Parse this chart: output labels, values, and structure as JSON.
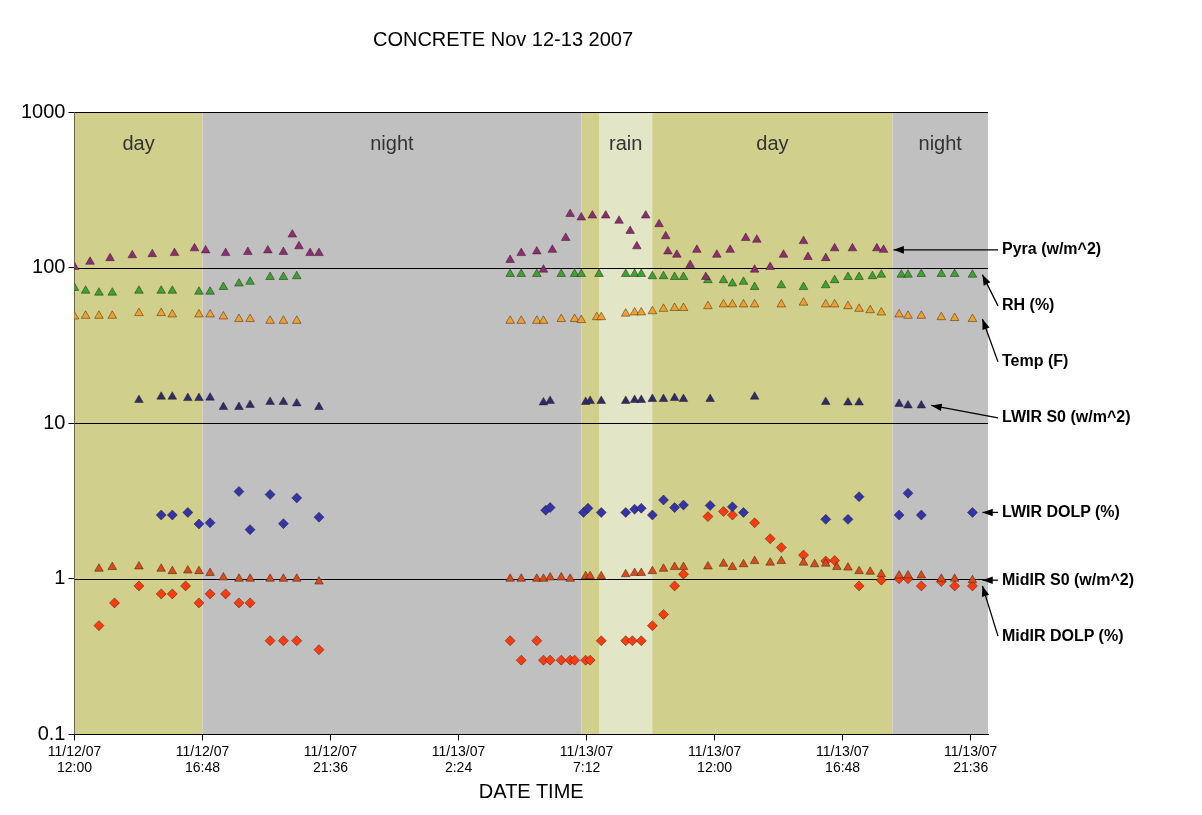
{
  "chart_data": {
    "type": "scatter",
    "title": "CONCRETE Nov 12-13 2007",
    "xlabel": "DATE TIME",
    "marker": "triangle",
    "log": "y",
    "grid": "y",
    "legend": false,
    "xlim": [
      "2007-11-12T12:00",
      "2007-11-13T22:15"
    ],
    "xticks": [
      {
        "value": "2007-11-12T12:00",
        "label": "11/12/07 12:00"
      },
      {
        "value": "2007-11-12T16:48",
        "label": "11/12/07 16:48"
      },
      {
        "value": "2007-11-12T21:36",
        "label": "11/12/07 21:36"
      },
      {
        "value": "2007-11-13T02:24",
        "label": "11/13/07 2:24"
      },
      {
        "value": "2007-11-13T07:12",
        "label": "11/13/07 7:12"
      },
      {
        "value": "2007-11-13T12:00",
        "label": "11/13/07 12:00"
      },
      {
        "value": "2007-11-13T16:48",
        "label": "11/13/07 16:48"
      },
      {
        "value": "2007-11-13T21:36",
        "label": "11/13/07 21:36"
      }
    ],
    "ylim": [
      0.1,
      1000
    ],
    "yticks": [
      0.1,
      1,
      10,
      100,
      1000
    ],
    "bands": [
      {
        "axis": "x",
        "from": "2007-11-12T12:00",
        "to": "2007-11-12T16:48",
        "label": "day",
        "color": "#d0d08c"
      },
      {
        "axis": "x",
        "from": "2007-11-12T16:48",
        "to": "2007-11-13T07:00",
        "label": "night",
        "color": "#c0c0c0"
      },
      {
        "axis": "x",
        "from": "2007-11-13T07:00",
        "to": "2007-11-13T18:40",
        "label": "day",
        "color": "#d0d08c"
      },
      {
        "axis": "x",
        "from": "2007-11-13T07:40",
        "to": "2007-11-13T09:40",
        "label": "rain",
        "color": "#e2e6c6"
      },
      {
        "axis": "x",
        "from": "2007-11-13T18:40",
        "to": "2007-11-13T22:15",
        "label": "night",
        "color": "#c0c0c0"
      }
    ],
    "series": [
      {
        "name": "Pyra (w/m^2)",
        "color": "#8e2c78",
        "x": [
          "2007-11-12T12:00",
          "2007-11-12T12:35",
          "2007-11-12T13:20",
          "2007-11-12T14:10",
          "2007-11-12T14:55",
          "2007-11-12T15:45",
          "2007-11-12T16:30",
          "2007-11-12T16:55",
          "2007-11-12T17:40",
          "2007-11-12T18:30",
          "2007-11-12T19:15",
          "2007-11-12T19:50",
          "2007-11-12T20:10",
          "2007-11-12T20:25",
          "2007-11-12T20:50",
          "2007-11-12T21:10",
          "2007-11-13T04:20",
          "2007-11-13T04:45",
          "2007-11-13T05:20",
          "2007-11-13T05:35",
          "2007-11-13T05:55",
          "2007-11-13T06:25",
          "2007-11-13T06:35",
          "2007-11-13T07:00",
          "2007-11-13T07:25",
          "2007-11-13T07:55",
          "2007-11-13T08:25",
          "2007-11-13T08:50",
          "2007-11-13T09:05",
          "2007-11-13T09:25",
          "2007-11-13T09:55",
          "2007-11-13T10:10",
          "2007-11-13T10:15",
          "2007-11-13T10:35",
          "2007-11-13T11:05",
          "2007-11-13T11:20",
          "2007-11-13T11:40",
          "2007-11-13T12:05",
          "2007-11-13T12:35",
          "2007-11-13T13:10",
          "2007-11-13T13:30",
          "2007-11-13T13:35",
          "2007-11-13T14:05",
          "2007-11-13T14:35",
          "2007-11-13T15:20",
          "2007-11-13T15:30",
          "2007-11-13T16:10",
          "2007-11-13T16:30",
          "2007-11-13T17:10",
          "2007-11-13T18:05",
          "2007-11-13T18:20"
        ],
        "values": [
          101,
          109,
          115,
          120,
          122,
          124,
          133,
          129,
          124,
          126,
          129,
          126,
          163,
          137,
          124,
          124,
          112,
          124,
          127,
          97,
          130,
          155,
          221,
          210,
          216,
          216,
          200,
          172,
          137,
          216,
          190,
          159,
          127,
          121,
          104,
          130,
          87,
          121,
          130,
          155,
          97,
          151,
          101,
          121,
          148,
          117,
          115,
          133,
          133,
          133,
          130
        ]
      },
      {
        "name": "RH (%)",
        "color": "#3aa335",
        "x": [
          "2007-11-12T12:00",
          "2007-11-12T12:25",
          "2007-11-12T12:55",
          "2007-11-12T13:25",
          "2007-11-12T14:25",
          "2007-11-12T15:15",
          "2007-11-12T15:40",
          "2007-11-12T16:40",
          "2007-11-12T17:05",
          "2007-11-12T17:35",
          "2007-11-12T18:10",
          "2007-11-12T18:35",
          "2007-11-12T19:20",
          "2007-11-12T19:50",
          "2007-11-12T20:20",
          "2007-11-13T04:20",
          "2007-11-13T04:45",
          "2007-11-13T05:20",
          "2007-11-13T05:35",
          "2007-11-13T06:15",
          "2007-11-13T06:45",
          "2007-11-13T07:00",
          "2007-11-13T07:40",
          "2007-11-13T08:40",
          "2007-11-13T09:00",
          "2007-11-13T09:15",
          "2007-11-13T09:40",
          "2007-11-13T10:05",
          "2007-11-13T10:30",
          "2007-11-13T10:50",
          "2007-11-13T11:45",
          "2007-11-13T12:20",
          "2007-11-13T12:40",
          "2007-11-13T13:05",
          "2007-11-13T13:30",
          "2007-11-13T14:30",
          "2007-11-13T15:20",
          "2007-11-13T16:10",
          "2007-11-13T16:30",
          "2007-11-13T17:00",
          "2007-11-13T17:25",
          "2007-11-13T17:55",
          "2007-11-13T18:15",
          "2007-11-13T19:00",
          "2007-11-13T19:15",
          "2007-11-13T19:45",
          "2007-11-13T20:30",
          "2007-11-13T21:00",
          "2007-11-13T21:40"
        ],
        "values": [
          74,
          71,
          69,
          69,
          71,
          71,
          71,
          70,
          70,
          75,
          79,
          81,
          87,
          87,
          88,
          91,
          91,
          91,
          null,
          91,
          91,
          91,
          91,
          91,
          91,
          91,
          88,
          88,
          87,
          87,
          83,
          83,
          79,
          81,
          75,
          77,
          75,
          77,
          83,
          87,
          87,
          88,
          90,
          90,
          90,
          91,
          91,
          91,
          90
        ]
      },
      {
        "name": "Temp (F)",
        "color": "#f0a030",
        "x": [
          "2007-11-12T12:00",
          "2007-11-12T12:25",
          "2007-11-12T12:55",
          "2007-11-12T13:25",
          "2007-11-12T14:25",
          "2007-11-12T15:15",
          "2007-11-12T15:40",
          "2007-11-12T16:40",
          "2007-11-12T17:05",
          "2007-11-12T17:35",
          "2007-11-12T18:10",
          "2007-11-12T18:35",
          "2007-11-12T19:20",
          "2007-11-12T19:50",
          "2007-11-12T20:20",
          "2007-11-13T04:20",
          "2007-11-13T04:45",
          "2007-11-13T05:20",
          "2007-11-13T05:35",
          "2007-11-13T06:15",
          "2007-11-13T06:45",
          "2007-11-13T07:00",
          "2007-11-13T07:35",
          "2007-11-13T07:45",
          "2007-11-13T08:40",
          "2007-11-13T09:00",
          "2007-11-13T09:15",
          "2007-11-13T09:40",
          "2007-11-13T10:05",
          "2007-11-13T10:30",
          "2007-11-13T10:50",
          "2007-11-13T11:45",
          "2007-11-13T12:20",
          "2007-11-13T12:40",
          "2007-11-13T13:05",
          "2007-11-13T13:30",
          "2007-11-13T14:30",
          "2007-11-13T15:20",
          "2007-11-13T16:10",
          "2007-11-13T16:30",
          "2007-11-13T17:00",
          "2007-11-13T17:25",
          "2007-11-13T17:50",
          "2007-11-13T18:15",
          "2007-11-13T18:55",
          "2007-11-13T19:15",
          "2007-11-13T19:45",
          "2007-11-13T20:30",
          "2007-11-13T21:00",
          "2007-11-13T21:40"
        ],
        "values": [
          48.5,
          49,
          49,
          49,
          51,
          51,
          50,
          50,
          50,
          48.5,
          46.7,
          46.7,
          45.5,
          45.5,
          45.5,
          45.5,
          45.5,
          45.5,
          45.5,
          46.7,
          46.7,
          46,
          48,
          48,
          50.6,
          51.5,
          51.5,
          52.4,
          54.3,
          55,
          55,
          56.5,
          58,
          58,
          58,
          58,
          58,
          59.5,
          58,
          58,
          56.5,
          54.3,
          53.2,
          51.5,
          50,
          49,
          49,
          48,
          47.4,
          46.7
        ]
      },
      {
        "name": "LWIR S0 (w/m^2)",
        "color": "#2c2c6e",
        "x": [
          "2007-11-12T14:25",
          "2007-11-12T15:15",
          "2007-11-12T15:40",
          "2007-11-12T16:15",
          "2007-11-12T16:40",
          "2007-11-12T17:05",
          "2007-11-12T17:35",
          "2007-11-12T18:10",
          "2007-11-12T18:35",
          "2007-11-12T19:20",
          "2007-11-12T19:50",
          "2007-11-12T20:20",
          "2007-11-12T21:10",
          "2007-11-13T05:35",
          "2007-11-13T05:50",
          "2007-11-13T07:10",
          "2007-11-13T07:20",
          "2007-11-13T07:45",
          "2007-11-13T08:40",
          "2007-11-13T09:00",
          "2007-11-13T09:15",
          "2007-11-13T09:40",
          "2007-11-13T10:05",
          "2007-11-13T10:30",
          "2007-11-13T10:50",
          "2007-11-13T11:50",
          "2007-11-13T13:30",
          "2007-11-13T16:10",
          "2007-11-13T17:00",
          "2007-11-13T17:25",
          "2007-11-13T18:55",
          "2007-11-13T19:15",
          "2007-11-13T19:45"
        ],
        "values": [
          14.1,
          14.8,
          14.8,
          14.5,
          14.5,
          14.6,
          12.7,
          12.7,
          13.1,
          13.7,
          13.7,
          13.4,
          12.7,
          13.6,
          13.9,
          13.7,
          13.9,
          13.9,
          13.9,
          14.1,
          14.1,
          14.3,
          14.3,
          14.5,
          14.3,
          14.3,
          14.8,
          13.7,
          13.6,
          13.6,
          13.3,
          13,
          13
        ]
      },
      {
        "name": "LWIR DOLP (%)",
        "color": "#3333aa",
        "marker": "diamond",
        "x": [
          "2007-11-12T15:15",
          "2007-11-12T15:40",
          "2007-11-12T16:15",
          "2007-11-12T16:40",
          "2007-11-12T17:05",
          "2007-11-12T18:10",
          "2007-11-12T18:35",
          "2007-11-12T19:20",
          "2007-11-12T19:50",
          "2007-11-12T20:20",
          "2007-11-12T21:10",
          "2007-11-13T05:40",
          "2007-11-13T05:50",
          "2007-11-13T07:05",
          "2007-11-13T07:15",
          "2007-11-13T07:45",
          "2007-11-13T08:40",
          "2007-11-13T09:00",
          "2007-11-13T09:15",
          "2007-11-13T09:40",
          "2007-11-13T10:05",
          "2007-11-13T10:30",
          "2007-11-13T10:50",
          "2007-11-13T11:50",
          "2007-11-13T12:40",
          "2007-11-13T13:05",
          "2007-11-13T16:10",
          "2007-11-13T17:00",
          "2007-11-13T17:25",
          "2007-11-13T18:55",
          "2007-11-13T19:15",
          "2007-11-13T19:45",
          "2007-11-13T21:40"
        ],
        "values": [
          2.57,
          2.57,
          2.67,
          2.25,
          2.29,
          3.64,
          2.07,
          3.48,
          2.26,
          3.31,
          2.49,
          2.76,
          2.87,
          2.67,
          2.84,
          2.67,
          2.67,
          2.8,
          2.84,
          2.57,
          3.21,
          2.87,
          2.98,
          2.96,
          2.9,
          2.67,
          2.41,
          2.41,
          3.37,
          2.57,
          3.55,
          2.57,
          2.67
        ]
      },
      {
        "name": "MidIR S0 (w/m^2)",
        "color": "#d94a1a",
        "x": [
          "2007-11-12T12:55",
          "2007-11-12T13:25",
          "2007-11-12T14:25",
          "2007-11-12T15:15",
          "2007-11-12T15:40",
          "2007-11-12T16:15",
          "2007-11-12T16:40",
          "2007-11-12T17:05",
          "2007-11-12T17:35",
          "2007-11-12T18:10",
          "2007-11-12T18:35",
          "2007-11-12T19:20",
          "2007-11-12T19:50",
          "2007-11-12T20:20",
          "2007-11-12T21:10",
          "2007-11-13T04:20",
          "2007-11-13T04:45",
          "2007-11-13T05:20",
          "2007-11-13T05:35",
          "2007-11-13T05:50",
          "2007-11-13T06:15",
          "2007-11-13T06:35",
          "2007-11-13T07:10",
          "2007-11-13T07:20",
          "2007-11-13T07:45",
          "2007-11-13T08:40",
          "2007-11-13T09:00",
          "2007-11-13T09:15",
          "2007-11-13T09:40",
          "2007-11-13T10:05",
          "2007-11-13T10:30",
          "2007-11-13T10:50",
          "2007-11-13T11:45",
          "2007-11-13T12:20",
          "2007-11-13T12:40",
          "2007-11-13T13:05",
          "2007-11-13T13:30",
          "2007-11-13T14:05",
          "2007-11-13T14:30",
          "2007-11-13T15:20",
          "2007-11-13T15:45",
          "2007-11-13T16:10",
          "2007-11-13T16:35",
          "2007-11-13T17:00",
          "2007-11-13T17:25",
          "2007-11-13T17:50",
          "2007-11-13T18:15",
          "2007-11-13T18:55",
          "2007-11-13T19:15",
          "2007-11-13T19:45",
          "2007-11-13T20:30",
          "2007-11-13T21:00",
          "2007-11-13T21:40"
        ],
        "values": [
          1.16,
          1.19,
          1.2,
          1.16,
          1.12,
          1.13,
          1.12,
          1.09,
          1.02,
          1,
          1,
          1,
          1,
          1,
          0.96,
          1,
          1,
          1,
          1,
          1.02,
          1.02,
          1,
          1.04,
          1.04,
          1.04,
          1.07,
          1.09,
          1.09,
          1.12,
          1.16,
          1.19,
          1.19,
          1.2,
          1.25,
          1.19,
          1.24,
          1.3,
          1.27,
          1.3,
          1.27,
          1.24,
          1.25,
          1.19,
          1.18,
          1.12,
          1.11,
          1.07,
          1.05,
          1.05,
          1.05,
          1,
          1,
          0.98
        ]
      },
      {
        "name": "MidIR DOLP (%)",
        "color": "#ff3a10",
        "marker": "diamond",
        "x": [
          "2007-11-12T12:55",
          "2007-11-12T13:30",
          "2007-11-12T14:25",
          "2007-11-12T15:15",
          "2007-11-12T15:40",
          "2007-11-12T16:10",
          "2007-11-12T16:40",
          "2007-11-12T17:05",
          "2007-11-12T17:40",
          "2007-11-12T18:10",
          "2007-11-12T18:35",
          "2007-11-12T19:20",
          "2007-11-12T19:50",
          "2007-11-12T20:20",
          "2007-11-12T21:10",
          "2007-11-13T04:20",
          "2007-11-13T04:45",
          "2007-11-13T05:20",
          "2007-11-13T05:35",
          "2007-11-13T05:50",
          "2007-11-13T06:15",
          "2007-11-13T06:35",
          "2007-11-13T06:45",
          "2007-11-13T07:10",
          "2007-11-13T07:20",
          "2007-11-13T07:45",
          "2007-11-13T08:40",
          "2007-11-13T08:55",
          "2007-11-13T09:15",
          "2007-11-13T09:40",
          "2007-11-13T10:05",
          "2007-11-13T10:30",
          "2007-11-13T10:50",
          "2007-11-13T11:45",
          "2007-11-13T12:20",
          "2007-11-13T12:40",
          "2007-11-13T13:05",
          "2007-11-13T13:30",
          "2007-11-13T14:05",
          "2007-11-13T14:30",
          "2007-11-13T15:20",
          "2007-11-13T16:10",
          "2007-11-13T16:30",
          "2007-11-13T17:25",
          "2007-11-13T18:15",
          "2007-11-13T18:55",
          "2007-11-13T19:15",
          "2007-11-13T19:45",
          "2007-11-13T20:30",
          "2007-11-13T21:00",
          "2007-11-13T21:40"
        ],
        "values": [
          0.5,
          0.7,
          0.9,
          0.8,
          0.8,
          0.9,
          0.7,
          0.8,
          0.8,
          0.7,
          0.7,
          0.4,
          0.4,
          0.4,
          0.35,
          0.4,
          0.3,
          0.4,
          0.3,
          0.3,
          0.3,
          0.3,
          0.3,
          0.3,
          0.3,
          0.4,
          0.4,
          0.4,
          0.4,
          0.5,
          0.59,
          0.9,
          1.07,
          2.51,
          2.71,
          2.57,
          null,
          2.29,
          1.81,
          1.59,
          1.42,
          1.3,
          1.31,
          0.9,
          0.98,
          1,
          1,
          0.9,
          0.96,
          0.9,
          0.9
        ]
      }
    ]
  }
}
